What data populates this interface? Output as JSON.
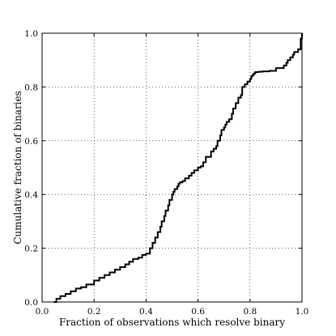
{
  "chart_data": {
    "type": "line",
    "step": true,
    "xlabel": "Fraction of observations which resolve binary",
    "ylabel": "Cumulative fraction of binaries",
    "xlim": [
      0.0,
      1.0
    ],
    "ylim": [
      0.0,
      1.0
    ],
    "grid": true,
    "grid_style": "dotted",
    "xticks": [
      "0.0",
      "0.2",
      "0.4",
      "0.6",
      "0.8",
      "1.0"
    ],
    "yticks": [
      "0.0",
      "0.2",
      "0.4",
      "0.6",
      "0.8",
      "1.0"
    ],
    "line_color": "#000000",
    "series": [
      {
        "x": [
          0.045,
          0.055,
          0.07,
          0.09,
          0.11,
          0.13,
          0.15,
          0.17,
          0.2,
          0.22,
          0.24,
          0.26,
          0.28,
          0.3,
          0.32,
          0.335,
          0.35,
          0.37,
          0.385,
          0.4,
          0.415,
          0.425,
          0.435,
          0.445,
          0.455,
          0.46,
          0.47,
          0.475,
          0.485,
          0.49,
          0.5,
          0.505,
          0.51,
          0.52,
          0.525,
          0.53,
          0.54,
          0.55,
          0.565,
          0.575,
          0.585,
          0.6,
          0.61,
          0.62,
          0.63,
          0.65,
          0.66,
          0.67,
          0.675,
          0.685,
          0.69,
          0.7,
          0.705,
          0.71,
          0.72,
          0.73,
          0.735,
          0.745,
          0.755,
          0.765,
          0.77,
          0.78,
          0.79,
          0.8,
          0.805,
          0.81,
          0.815,
          0.82,
          0.83,
          0.84,
          0.85,
          0.86,
          0.875,
          0.9,
          0.93,
          0.94,
          0.945,
          0.955,
          0.965,
          0.97,
          0.985,
          0.995,
          1.0
        ],
        "y": [
          0.0,
          0.012,
          0.022,
          0.03,
          0.04,
          0.05,
          0.055,
          0.065,
          0.08,
          0.09,
          0.1,
          0.11,
          0.12,
          0.13,
          0.14,
          0.15,
          0.16,
          0.165,
          0.175,
          0.18,
          0.2,
          0.22,
          0.24,
          0.26,
          0.28,
          0.3,
          0.32,
          0.34,
          0.36,
          0.38,
          0.4,
          0.41,
          0.42,
          0.43,
          0.44,
          0.445,
          0.45,
          0.46,
          0.47,
          0.48,
          0.49,
          0.5,
          0.505,
          0.52,
          0.54,
          0.56,
          0.57,
          0.58,
          0.6,
          0.62,
          0.64,
          0.65,
          0.66,
          0.67,
          0.68,
          0.7,
          0.72,
          0.74,
          0.76,
          0.77,
          0.8,
          0.81,
          0.82,
          0.83,
          0.84,
          0.845,
          0.85,
          0.855,
          0.856,
          0.857,
          0.858,
          0.858,
          0.86,
          0.87,
          0.88,
          0.89,
          0.9,
          0.91,
          0.92,
          0.93,
          0.94,
          0.98,
          1.0
        ]
      }
    ]
  }
}
